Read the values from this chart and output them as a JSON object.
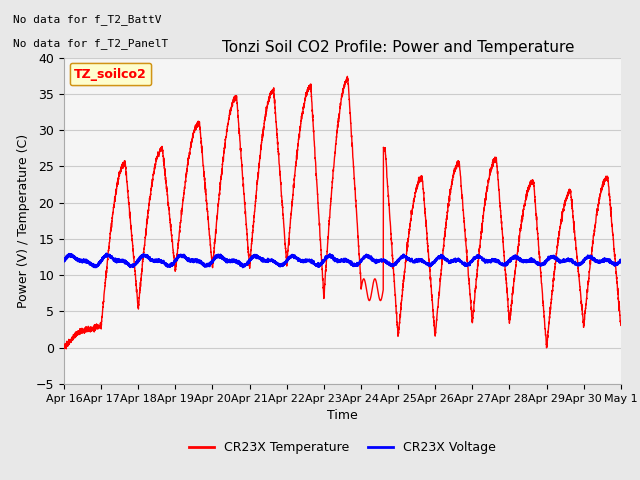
{
  "title": "Tonzi Soil CO2 Profile: Power and Temperature",
  "xlabel": "Time",
  "ylabel": "Power (V) / Temperature (C)",
  "ylim": [
    -5,
    40
  ],
  "yticks": [
    -5,
    0,
    5,
    10,
    15,
    20,
    25,
    30,
    35,
    40
  ],
  "annotations": [
    "No data for f_T2_BattV",
    "No data for f_T2_PanelT"
  ],
  "legend_box_label": "TZ_soilco2",
  "legend_entries": [
    "CR23X Temperature",
    "CR23X Voltage"
  ],
  "legend_colors": [
    "#ff0000",
    "#0000ff"
  ],
  "x_tick_labels": [
    "Apr 16",
    "Apr 17",
    "Apr 18",
    "Apr 19",
    "Apr 20",
    "Apr 21",
    "Apr 22",
    "Apr 23",
    "Apr 24",
    "Apr 25",
    "Apr 26",
    "Apr 27",
    "Apr 28",
    "Apr 29",
    "Apr 30",
    "May 1"
  ],
  "temp_color": "#ff0000",
  "volt_color": "#0000ff",
  "bg_color": "#e8e8e8",
  "plot_bg_color": "#f5f5f5",
  "grid_color": "#cccccc",
  "annotation_fontsize": 8,
  "title_fontsize": 11
}
